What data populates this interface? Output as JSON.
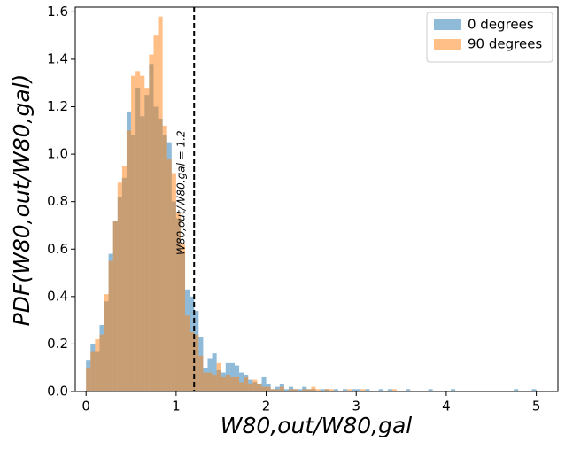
{
  "chart_data": {
    "type": "histogram",
    "xlabel": "W80,out/W80,gal",
    "ylabel": "PDF(W80,out/W80,gal)",
    "bins": [
      0,
      0.05,
      0.1,
      0.15,
      0.2,
      0.25,
      0.3,
      0.35,
      0.4,
      0.45,
      0.5,
      0.55,
      0.6,
      0.65,
      0.7,
      0.75,
      0.8,
      0.85,
      0.9,
      0.95,
      1,
      1.05,
      1.1,
      1.15,
      1.2,
      1.25,
      1.3,
      1.35,
      1.4,
      1.45,
      1.5,
      1.55,
      1.6,
      1.65,
      1.7,
      1.75,
      1.8,
      1.85,
      1.9,
      1.95,
      2,
      2.05,
      2.1,
      2.15,
      2.2,
      2.25,
      2.3,
      2.35,
      2.4,
      2.45,
      2.5,
      2.55,
      2.6,
      2.65,
      2.7,
      2.75,
      2.8,
      2.85,
      2.9,
      2.95,
      3,
      3.05,
      3.1,
      3.15,
      3.2,
      3.25,
      3.3,
      3.35,
      3.4,
      3.45,
      3.5,
      3.55,
      3.6,
      3.65,
      3.7,
      3.75,
      3.8,
      3.85,
      3.9,
      3.95,
      4,
      4.05,
      4.1,
      4.15,
      4.2,
      4.25,
      4.3,
      4.35,
      4.4,
      4.45,
      4.5,
      4.55,
      4.6,
      4.65,
      4.7,
      4.75,
      4.8,
      4.85,
      4.9,
      4.95,
      5
    ],
    "series": [
      {
        "name": "0 degrees",
        "color": "#1f77b4",
        "opacity": 0.5,
        "values": [
          0.13,
          0.2,
          0.17,
          0.28,
          0.38,
          0.58,
          0.72,
          0.82,
          0.9,
          1.18,
          1.08,
          1.28,
          1.16,
          1.25,
          1.38,
          1.2,
          1.15,
          1.08,
          1.05,
          0.8,
          0.73,
          0.58,
          0.43,
          0.4,
          0.34,
          0.23,
          0.1,
          0.14,
          0.16,
          0.09,
          0.08,
          0.12,
          0.12,
          0.11,
          0.08,
          0.07,
          0.05,
          0.04,
          0.03,
          0.06,
          0.03,
          0.01,
          0.02,
          0.03,
          0.01,
          0.02,
          0.01,
          0.01,
          0.02,
          0.01,
          0.01,
          0,
          0.01,
          0.01,
          0,
          0.01,
          0,
          0.01,
          0,
          0.01,
          0.01,
          0,
          0.01,
          0,
          0,
          0.01,
          0,
          0.01,
          0,
          0,
          0,
          0.01,
          0,
          0,
          0,
          0,
          0.01,
          0,
          0,
          0,
          0,
          0.01,
          0,
          0,
          0,
          0,
          0,
          0,
          0,
          0,
          0,
          0,
          0,
          0,
          0,
          0.01,
          0,
          0,
          0,
          0.01
        ]
      },
      {
        "name": "90 degrees",
        "color": "#ff7f0e",
        "opacity": 0.5,
        "values": [
          0.1,
          0.17,
          0.22,
          0.24,
          0.41,
          0.55,
          0.72,
          0.88,
          0.95,
          1.1,
          1.33,
          1.35,
          1.33,
          1.28,
          1.42,
          1.5,
          1.58,
          1.12,
          0.98,
          0.92,
          0.75,
          0.62,
          0.32,
          0.25,
          0.24,
          0.15,
          0.08,
          0.08,
          0.07,
          0.12,
          0.06,
          0.07,
          0.06,
          0.06,
          0.04,
          0.06,
          0.03,
          0.05,
          0.03,
          0.02,
          0.02,
          0.01,
          0.01,
          0.02,
          0,
          0.01,
          0.01,
          0,
          0.01,
          0.01,
          0.02,
          0.01,
          0,
          0.01,
          0.01,
          0,
          0,
          0,
          0.01,
          0,
          0,
          0.01,
          0,
          0,
          0,
          0,
          0,
          0,
          0.01,
          0,
          0,
          0,
          0,
          0,
          0,
          0,
          0,
          0,
          0,
          0,
          0,
          0,
          0,
          0,
          0,
          0,
          0,
          0,
          0,
          0,
          0,
          0,
          0,
          0,
          0,
          0,
          0,
          0,
          0,
          0
        ]
      }
    ],
    "vline": {
      "x": 1.2,
      "label": "W80,out/W80,gal = 1.2",
      "color": "#000000"
    },
    "xlim": [
      -0.12,
      5.24
    ],
    "ylim": [
      0,
      1.62
    ],
    "xticks": [
      0,
      1,
      2,
      3,
      4,
      5
    ],
    "yticks": [
      {
        "value": 0,
        "label": "0.0"
      },
      {
        "value": 0.2,
        "label": "0.2"
      },
      {
        "value": 0.4,
        "label": "0.4"
      },
      {
        "value": 0.6,
        "label": "0.6"
      },
      {
        "value": 0.8,
        "label": "0.8"
      },
      {
        "value": 1.0,
        "label": "1.0"
      },
      {
        "value": 1.2,
        "label": "1.2"
      },
      {
        "value": 1.4,
        "label": "1.4"
      },
      {
        "value": 1.6,
        "label": "1.6"
      }
    ],
    "legend": "upper right",
    "grid": false
  }
}
